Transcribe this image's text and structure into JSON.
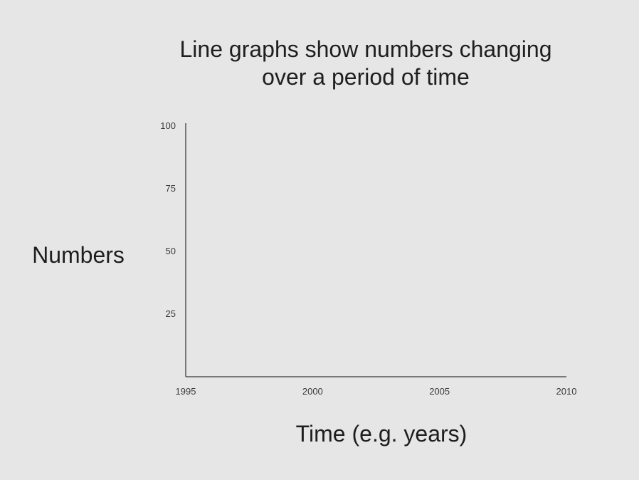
{
  "chart_data": {
    "type": "line",
    "title_lines": [
      "Line graphs show numbers changing",
      "over a period of time"
    ],
    "xlabel": "Time (e.g. years)",
    "ylabel": "Numbers",
    "x_ticks": [
      1995,
      2000,
      2005,
      2010
    ],
    "y_ticks": [
      25,
      50,
      75,
      100
    ],
    "xlim": [
      1995,
      2010
    ],
    "ylim": [
      0,
      100
    ],
    "series": [],
    "grid": false,
    "colors": {
      "background": "#e6e6e6",
      "text": "#1e1e1e",
      "axis": "#555555"
    }
  }
}
